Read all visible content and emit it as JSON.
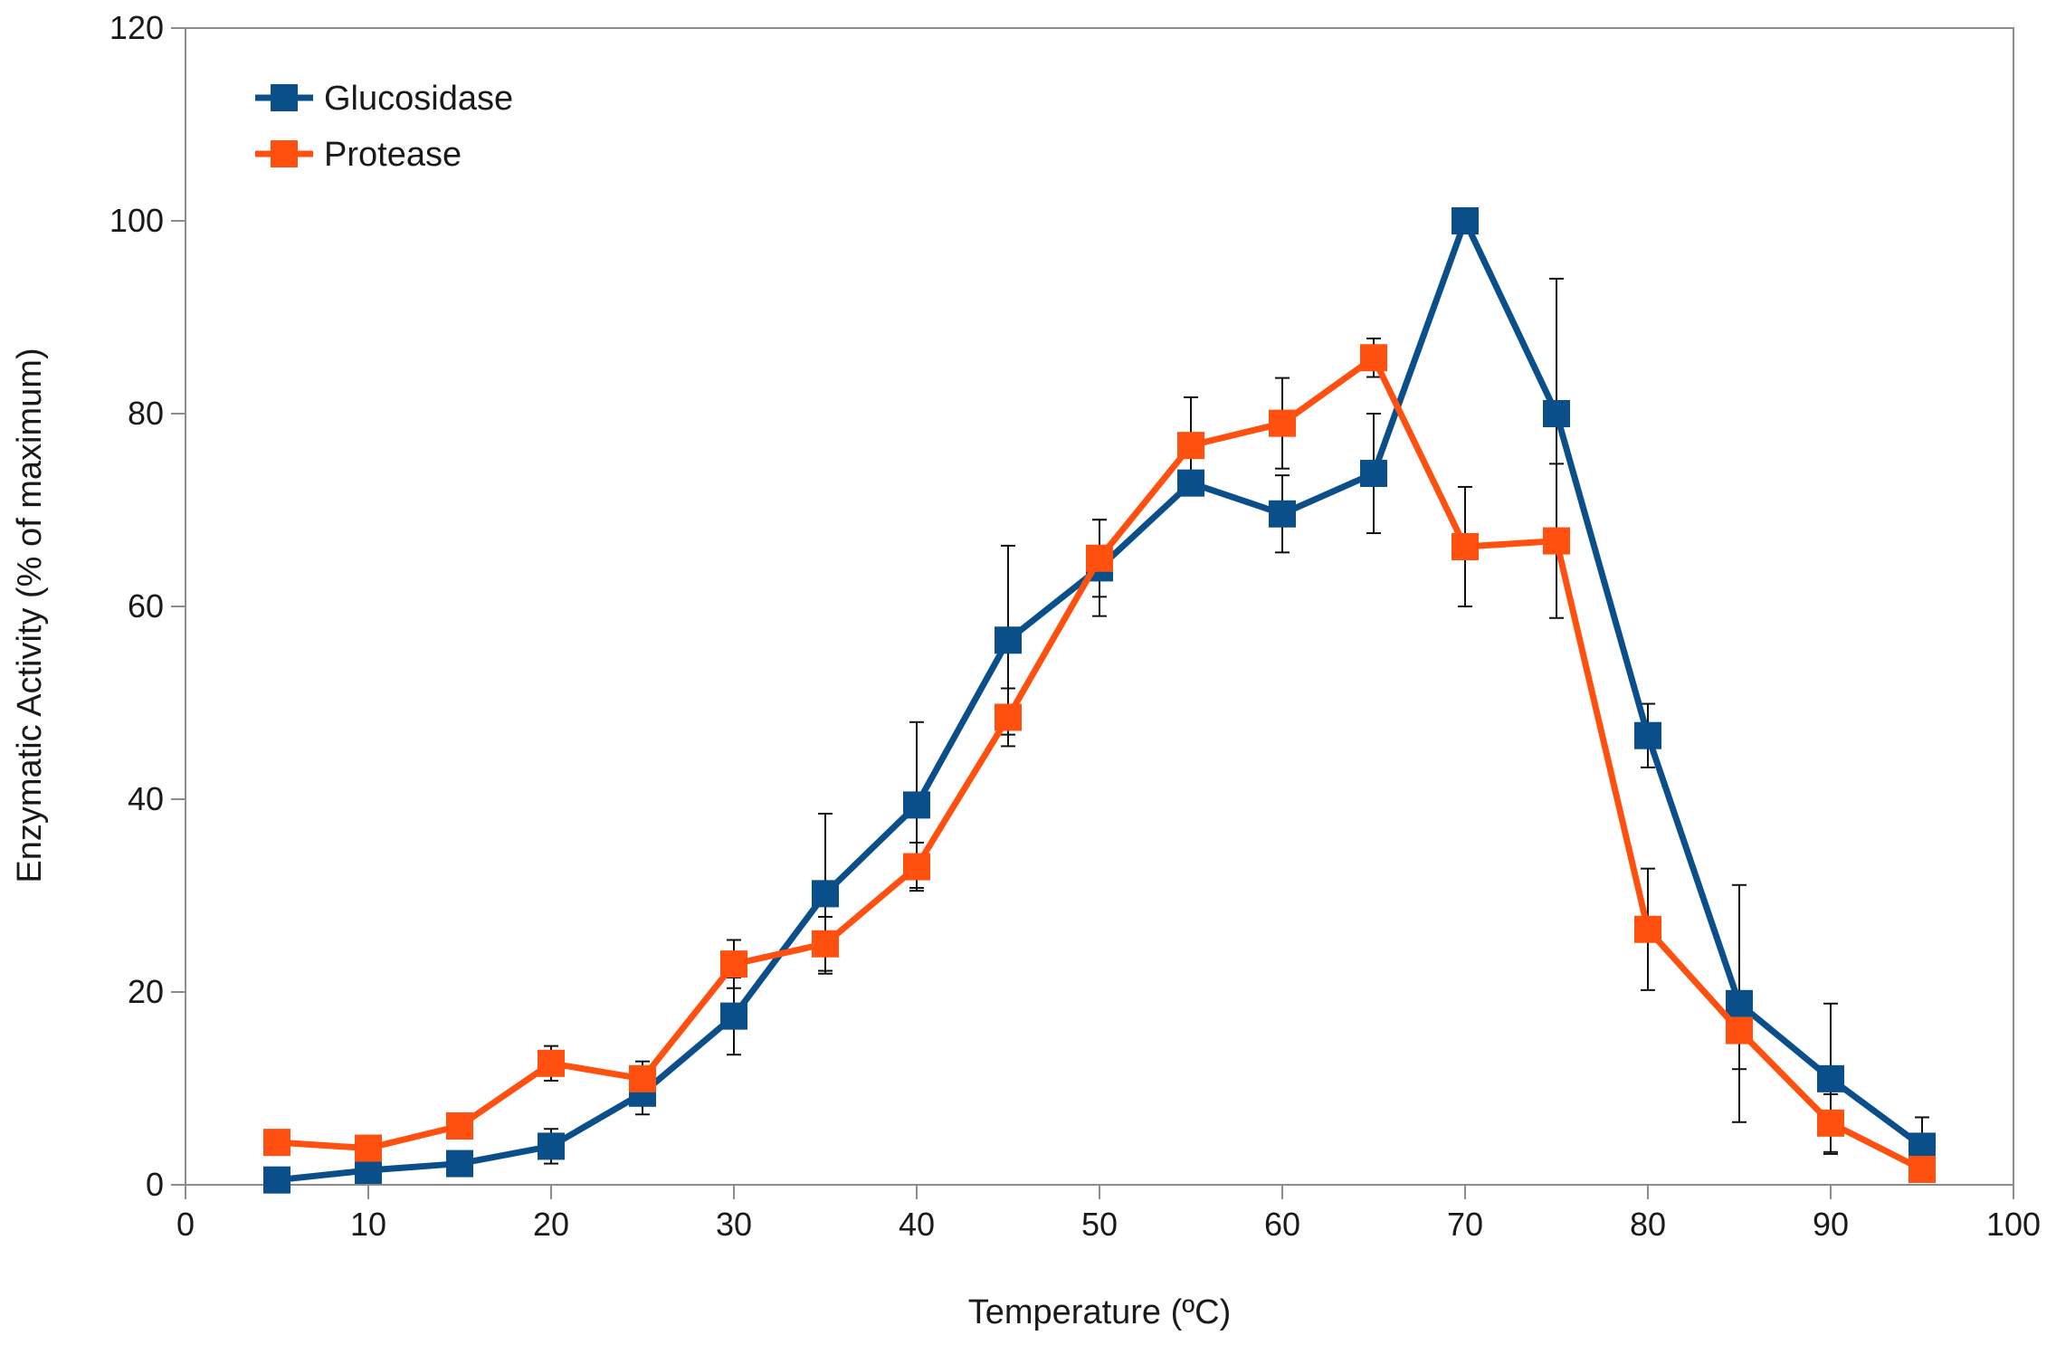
{
  "chart_data": {
    "type": "line",
    "title": "",
    "xlabel": "Temperature (ºC)",
    "ylabel": "Enzymatic Activity (% of maximum)",
    "xlim": [
      0,
      100
    ],
    "ylim": [
      0,
      120
    ],
    "xticks": [
      0,
      10,
      20,
      30,
      40,
      50,
      60,
      70,
      80,
      90,
      100
    ],
    "yticks": [
      0,
      20,
      40,
      60,
      80,
      100,
      120
    ],
    "grid": false,
    "legend_position": "top-left",
    "x": [
      5,
      10,
      15,
      20,
      25,
      30,
      35,
      40,
      45,
      50,
      55,
      60,
      65,
      70,
      75,
      80,
      85,
      90,
      95
    ],
    "series": [
      {
        "name": "Glucosidase",
        "color": "#0b4f8a",
        "marker": "square",
        "values": [
          0.5,
          1.5,
          2.2,
          4,
          9.5,
          17.5,
          30.2,
          39.4,
          56.5,
          64,
          72.8,
          69.6,
          73.8,
          100,
          80,
          46.6,
          18.8,
          11,
          4
        ],
        "errors": [
          0.5,
          1,
          0.5,
          1.8,
          2.2,
          4,
          8.3,
          8.6,
          9.8,
          5,
          0.5,
          4,
          6.2,
          0.5,
          14,
          3.3,
          12.3,
          7.8,
          3
        ]
      },
      {
        "name": "Protease",
        "color": "#ff5010",
        "marker": "square",
        "values": [
          4.4,
          3.8,
          6.1,
          12.6,
          11,
          22.9,
          25,
          33,
          48.5,
          65,
          76.7,
          79,
          85.8,
          66.2,
          66.8,
          26.5,
          16,
          6.4,
          1.6
        ],
        "errors": [
          1.2,
          1.3,
          1,
          1.8,
          1.8,
          2.5,
          2.8,
          2.5,
          3,
          4,
          5,
          4.7,
          2,
          6.2,
          8,
          6.3,
          4,
          3,
          0.8
        ]
      }
    ]
  }
}
